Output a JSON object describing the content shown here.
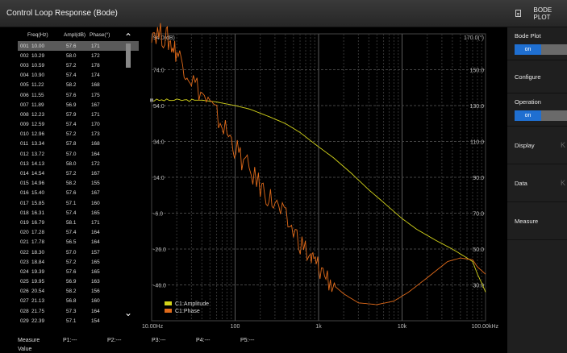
{
  "window": {
    "title": "Control Loop Response (Bode)"
  },
  "side_panel": {
    "header": "BODE PLOT",
    "items": [
      {
        "label": "Bode Plot",
        "toggle": "on"
      },
      {
        "label": "Configure"
      },
      {
        "label": "Operation",
        "toggle": "on"
      },
      {
        "label": "Display"
      },
      {
        "label": "Data"
      },
      {
        "label": "Measure"
      }
    ]
  },
  "table": {
    "headers": [
      "Freq(Hz)",
      "Ampl(dB)",
      "Phase(°)"
    ],
    "rows": [
      [
        "001",
        "10.00",
        "57.6",
        "171"
      ],
      [
        "002",
        "10.29",
        "58.0",
        "172"
      ],
      [
        "003",
        "10.59",
        "57.2",
        "178"
      ],
      [
        "004",
        "10.90",
        "57.4",
        "174"
      ],
      [
        "005",
        "11.22",
        "58.2",
        "168"
      ],
      [
        "006",
        "11.55",
        "57.6",
        "175"
      ],
      [
        "007",
        "11.89",
        "56.9",
        "167"
      ],
      [
        "008",
        "12.23",
        "57.9",
        "171"
      ],
      [
        "009",
        "12.59",
        "57.4",
        "170"
      ],
      [
        "010",
        "12.96",
        "57.2",
        "173"
      ],
      [
        "011",
        "13.34",
        "57.8",
        "168"
      ],
      [
        "012",
        "13.72",
        "57.0",
        "164"
      ],
      [
        "013",
        "14.13",
        "58.0",
        "172"
      ],
      [
        "014",
        "14.54",
        "57.2",
        "167"
      ],
      [
        "015",
        "14.96",
        "58.2",
        "155"
      ],
      [
        "016",
        "15.40",
        "57.6",
        "167"
      ],
      [
        "017",
        "15.85",
        "57.1",
        "160"
      ],
      [
        "018",
        "16.31",
        "57.4",
        "165"
      ],
      [
        "019",
        "16.79",
        "58.1",
        "171"
      ],
      [
        "020",
        "17.28",
        "57.4",
        "164"
      ],
      [
        "021",
        "17.78",
        "56.5",
        "164"
      ],
      [
        "022",
        "18.30",
        "57.0",
        "157"
      ],
      [
        "023",
        "18.84",
        "57.2",
        "165"
      ],
      [
        "024",
        "19.39",
        "57.6",
        "165"
      ],
      [
        "025",
        "19.95",
        "56.9",
        "163"
      ],
      [
        "026",
        "20.54",
        "58.2",
        "156"
      ],
      [
        "027",
        "21.13",
        "56.8",
        "160"
      ],
      [
        "028",
        "21.75",
        "57.3",
        "164"
      ],
      [
        "029",
        "22.39",
        "57.1",
        "154"
      ]
    ]
  },
  "chart_data": {
    "type": "line",
    "x_scale": "log",
    "xlim": [
      10,
      100000
    ],
    "x_tick_labels": [
      "10.00Hz",
      "100",
      "1k",
      "10k",
      "100.00kHz"
    ],
    "y_left_label": "94.0(dB)",
    "y_left_ticks": [
      "74.0",
      "54.0",
      "34.0",
      "14.0",
      "-6.0",
      "-26.0",
      "-46.0"
    ],
    "y_left_range": [
      -66,
      94
    ],
    "y_right_label": "170.0(°)",
    "y_right_ticks": [
      "150.0",
      "130.0",
      "110.0",
      "90.0",
      "70.0",
      "50.0",
      "30.0"
    ],
    "y_right_range": [
      10,
      170
    ],
    "grid": true,
    "legend_position": "bottom-left",
    "series": [
      {
        "name": "C1:Amplitude",
        "color": "#d4d41a",
        "x": [
          10,
          20,
          40,
          60,
          100,
          150,
          250,
          400,
          600,
          1000,
          1500,
          2500,
          4000,
          6000,
          10000,
          15000,
          25000,
          40000,
          60000,
          70000,
          80000,
          90000,
          100000
        ],
        "y": [
          57,
          57,
          57,
          56,
          54,
          52,
          48,
          44,
          39,
          31,
          25,
          16,
          7,
          0,
          -9,
          -15,
          -21,
          -26,
          -31,
          -33,
          -40,
          -45,
          -50
        ]
      },
      {
        "name": "C1:Phase",
        "color": "#e06a1a",
        "x": [
          10,
          15,
          20,
          30,
          50,
          80,
          120,
          200,
          300,
          500,
          800,
          1000,
          1500,
          2000,
          3000,
          5000,
          8000,
          12000,
          20000,
          35000,
          50000,
          70000,
          80000,
          100000
        ],
        "y": [
          172,
          168,
          160,
          145,
          130,
          115,
          100,
          85,
          75,
          60,
          45,
          40,
          30,
          25,
          20,
          19,
          21,
          26,
          34,
          43,
          45,
          44,
          40,
          36
        ]
      }
    ]
  },
  "cursor_readout": {
    "measure": "Measure",
    "value": "Value",
    "p1": "P1:---",
    "p2": "P2:---",
    "p3": "P3:---",
    "p4": "P4:---",
    "p5": "P5:---"
  }
}
